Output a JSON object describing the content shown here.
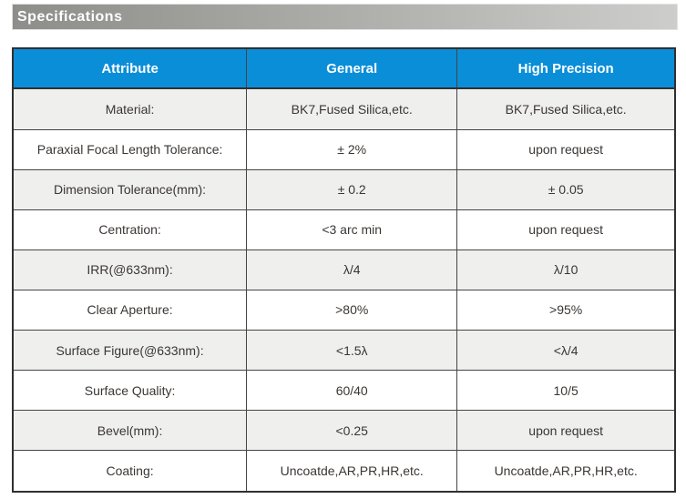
{
  "banner": {
    "title": "Specifications"
  },
  "table": {
    "columns": [
      "Attribute",
      "General",
      "High Precision"
    ],
    "rows": [
      {
        "attribute": "Material:",
        "general": "BK7,Fused Silica,etc.",
        "high_precision": "BK7,Fused Silica,etc."
      },
      {
        "attribute": "Paraxial Focal Length Tolerance:",
        "general": "± 2%",
        "high_precision": "upon request"
      },
      {
        "attribute": "Dimension Tolerance(mm):",
        "general": "± 0.2",
        "high_precision": "± 0.05"
      },
      {
        "attribute": "Centration:",
        "general": "<3 arc min",
        "high_precision": "upon request"
      },
      {
        "attribute": "IRR(@633nm):",
        "general": "λ/4",
        "high_precision": "λ/10"
      },
      {
        "attribute": "Clear Aperture:",
        "general": ">80%",
        "high_precision": ">95%"
      },
      {
        "attribute": "Surface Figure(@633nm):",
        "general": "<1.5λ",
        "high_precision": "<λ/4"
      },
      {
        "attribute": "Surface Quality:",
        "general": "60/40",
        "high_precision": "10/5"
      },
      {
        "attribute": "Bevel(mm):",
        "general": "<0.25",
        "high_precision": "upon request"
      },
      {
        "attribute": "Coating:",
        "general": "Uncoatde,AR,PR,HR,etc.",
        "high_precision": "Uncoatde,AR,PR,HR,etc."
      }
    ]
  },
  "colors": {
    "header_blue": "#0a8ed8",
    "banner_gradient_start": "#8d8d89",
    "banner_gradient_end": "#cdcdcb",
    "row_alt_gray": "#efefed",
    "row_white": "#ffffff",
    "border_dark": "#2f2f2f",
    "text": "#3a3633"
  }
}
